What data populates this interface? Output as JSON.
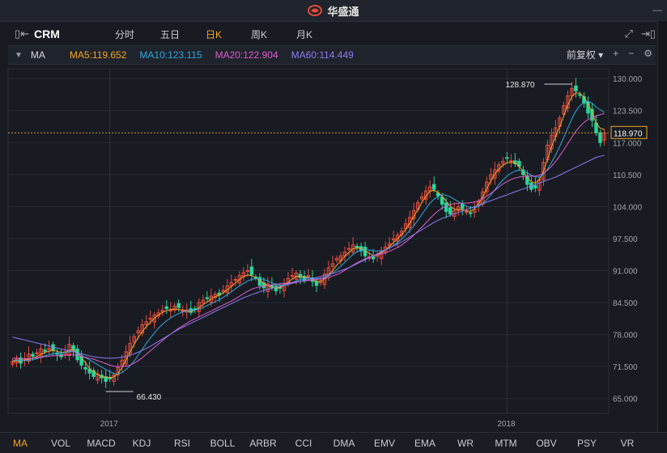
{
  "app": {
    "title": "华盛通"
  },
  "toolbar": {
    "symbol": "CRM",
    "tabs": [
      {
        "label": "分时",
        "active": false
      },
      {
        "label": "五日",
        "active": false
      },
      {
        "label": "日K",
        "active": true
      },
      {
        "label": "周K",
        "active": false
      },
      {
        "label": "月K",
        "active": false
      }
    ]
  },
  "ma_bar": {
    "name": "MA",
    "items": [
      {
        "label": "MA5:119.652",
        "color": "#f5a623"
      },
      {
        "label": "MA10:123.115",
        "color": "#2fa8e0"
      },
      {
        "label": "MA20:122.904",
        "color": "#e05bd0"
      },
      {
        "label": "MA60:114.449",
        "color": "#8b7cf6"
      }
    ],
    "adjust_label": "前复权"
  },
  "chart_data": {
    "type": "candlestick",
    "y_axis_ticks": [
      "130.000",
      "123.500",
      "117.000",
      "110.500",
      "104.000",
      "97.500",
      "91.000",
      "84.500",
      "78.000",
      "71.500",
      "65.000"
    ],
    "ylim": [
      62,
      132
    ],
    "x_axis_labels": [
      "2017",
      "2018"
    ],
    "high_label": "128.870",
    "low_label": "66.430",
    "current_price": "118.970",
    "close_series": [
      72.5,
      73.0,
      72.2,
      73.1,
      74.0,
      73.6,
      74.3,
      75.1,
      74.6,
      75.2,
      74.8,
      74.0,
      73.5,
      74.5,
      76.0,
      74.8,
      72.9,
      71.8,
      71.0,
      70.2,
      69.5,
      70.0,
      69.2,
      68.5,
      69.0,
      69.8,
      71.3,
      72.8,
      74.5,
      76.2,
      77.6,
      78.8,
      80.0,
      80.6,
      81.3,
      82.0,
      82.4,
      82.9,
      83.3,
      83.0,
      83.8,
      83.5,
      82.8,
      83.0,
      82.5,
      83.2,
      84.5,
      85.0,
      85.3,
      85.8,
      86.2,
      86.0,
      87.0,
      87.9,
      88.6,
      89.2,
      90.0,
      90.6,
      91.0,
      90.2,
      89.6,
      88.0,
      87.5,
      88.3,
      87.6,
      86.9,
      87.4,
      88.3,
      89.4,
      90.0,
      90.5,
      89.6,
      89.0,
      90.0,
      88.8,
      88.0,
      88.9,
      90.3,
      91.6,
      92.4,
      93.5,
      94.0,
      94.8,
      95.5,
      96.2,
      95.6,
      95.0,
      94.0,
      93.8,
      93.4,
      94.2,
      95.0,
      95.8,
      96.5,
      97.5,
      98.2,
      99.0,
      100.5,
      101.8,
      103.2,
      104.8,
      106.0,
      107.2,
      108.0,
      107.5,
      106.2,
      104.5,
      103.0,
      102.5,
      103.2,
      104.0,
      103.6,
      103.0,
      102.6,
      103.5,
      105.0,
      107.0,
      109.0,
      110.5,
      111.5,
      112.5,
      113.2,
      113.8,
      113.3,
      112.7,
      112.2,
      110.5,
      108.5,
      107.5,
      107.8,
      109.5,
      113.0,
      116.5,
      118.5,
      120.0,
      122.0,
      124.5,
      126.5,
      128.0,
      127.5,
      126.6,
      125.0,
      123.0,
      121.5,
      119.0,
      117.0,
      118.97
    ],
    "ma_series": [
      {
        "name": "MA5",
        "values": [
          72.5,
          72.7,
          72.6,
          72.8,
          73.0,
          73.2,
          73.5,
          74.0,
          74.4,
          74.6,
          74.8,
          74.6,
          74.4,
          74.4,
          74.8,
          74.9,
          74.3,
          73.3,
          72.3,
          71.1,
          70.5,
          69.9,
          69.5,
          69.3,
          69.3,
          69.4,
          70.1,
          71.3,
          72.8,
          74.5,
          76.0,
          77.4,
          78.6,
          79.6,
          80.5,
          81.3,
          82.0,
          82.5,
          82.9,
          83.1,
          83.2,
          83.1,
          83.0,
          82.8,
          82.7,
          82.9,
          83.5,
          84.1,
          84.6,
          85.2,
          85.7,
          86.0,
          86.5,
          87.1,
          87.8,
          88.5,
          89.2,
          89.8,
          90.1,
          90.0,
          89.6,
          89.0,
          88.4,
          88.0,
          87.6,
          87.4,
          87.6,
          88.0,
          88.6,
          89.3,
          89.8,
          89.8,
          89.6,
          89.6,
          89.3,
          88.8,
          88.8,
          89.3,
          90.1,
          91.0,
          92.1,
          93.0,
          93.9,
          94.7,
          95.4,
          95.6,
          95.5,
          95.0,
          94.5,
          94.0,
          94.2,
          94.6,
          95.2,
          95.9,
          96.7,
          97.5,
          98.3,
          99.4,
          100.6,
          102.0,
          103.4,
          104.8,
          106.1,
          107.1,
          107.3,
          106.9,
          106.1,
          105.1,
          104.1,
          103.5,
          103.4,
          103.4,
          103.2,
          103.0,
          103.6,
          104.6,
          106.0,
          107.6,
          109.2,
          110.6,
          111.6,
          112.4,
          112.9,
          113.0,
          112.9,
          112.2,
          111.1,
          109.9,
          109.0,
          108.8,
          109.5,
          111.2,
          113.6,
          116.2,
          118.3,
          120.2,
          122.4,
          124.6,
          126.3,
          127.1,
          127.0,
          126.2,
          124.9,
          123.2,
          121.0,
          119.9,
          119.652
        ]
      },
      {
        "name": "MA10",
        "values": [
          72.8,
          72.8,
          72.7,
          72.7,
          72.8,
          72.9,
          73.1,
          73.4,
          73.7,
          73.9,
          74.1,
          74.2,
          74.3,
          74.4,
          74.5,
          74.6,
          74.3,
          73.8,
          73.3,
          72.9,
          72.4,
          71.9,
          71.4,
          70.9,
          70.5,
          70.1,
          70.0,
          70.3,
          70.9,
          71.7,
          72.6,
          73.8,
          75.0,
          76.2,
          77.3,
          78.3,
          79.3,
          80.1,
          80.8,
          81.4,
          81.9,
          82.3,
          82.6,
          82.8,
          82.9,
          83.0,
          83.2,
          83.5,
          83.9,
          84.3,
          84.7,
          85.1,
          85.6,
          86.1,
          86.7,
          87.3,
          87.9,
          88.4,
          88.9,
          89.2,
          89.4,
          89.4,
          89.2,
          88.9,
          88.5,
          88.2,
          88.0,
          88.1,
          88.3,
          88.6,
          88.9,
          89.2,
          89.4,
          89.5,
          89.5,
          89.4,
          89.4,
          89.6,
          90.0,
          90.5,
          91.2,
          91.9,
          92.7,
          93.5,
          94.3,
          94.8,
          95.1,
          95.2,
          95.2,
          95.0,
          95.0,
          95.0,
          95.2,
          95.6,
          96.1,
          96.7,
          97.4,
          98.2,
          99.1,
          100.1,
          101.2,
          102.4,
          103.6,
          104.7,
          105.5,
          106.1,
          106.4,
          106.3,
          106.0,
          105.5,
          105.0,
          104.5,
          104.1,
          103.8,
          103.8,
          104.0,
          104.6,
          105.4,
          106.4,
          107.4,
          108.5,
          109.4,
          110.2,
          110.8,
          111.2,
          111.4,
          111.2,
          110.8,
          110.4,
          110.0,
          110.0,
          110.6,
          111.6,
          113.0,
          114.5,
          116.2,
          118.0,
          119.9,
          121.8,
          123.4,
          124.5,
          125.2,
          125.4,
          125.0,
          124.2,
          123.7,
          123.115
        ]
      },
      {
        "name": "MA20",
        "values": [
          73.2,
          73.2,
          73.1,
          73.1,
          73.1,
          73.2,
          73.3,
          73.4,
          73.5,
          73.6,
          73.7,
          73.7,
          73.8,
          73.8,
          73.9,
          73.9,
          73.8,
          73.6,
          73.4,
          73.2,
          73.0,
          72.7,
          72.4,
          72.1,
          71.8,
          71.6,
          71.5,
          71.5,
          71.6,
          71.8,
          72.2,
          72.7,
          73.3,
          74.0,
          74.7,
          75.4,
          76.1,
          76.8,
          77.5,
          78.1,
          78.7,
          79.3,
          79.8,
          80.3,
          80.8,
          81.2,
          81.6,
          82.0,
          82.4,
          82.8,
          83.2,
          83.6,
          84.0,
          84.4,
          84.8,
          85.3,
          85.8,
          86.3,
          86.8,
          87.2,
          87.5,
          87.7,
          87.9,
          88.0,
          88.1,
          88.2,
          88.3,
          88.4,
          88.5,
          88.6,
          88.7,
          88.8,
          88.9,
          89.0,
          89.1,
          89.2,
          89.3,
          89.4,
          89.6,
          89.9,
          90.2,
          90.6,
          91.1,
          91.6,
          92.1,
          92.6,
          93.0,
          93.4,
          93.7,
          94.0,
          94.2,
          94.4,
          94.6,
          94.9,
          95.3,
          95.7,
          96.2,
          96.8,
          97.5,
          98.2,
          99.0,
          99.8,
          100.7,
          101.6,
          102.4,
          103.1,
          103.7,
          104.1,
          104.4,
          104.6,
          104.7,
          104.7,
          104.7,
          104.8,
          104.9,
          105.2,
          105.6,
          106.1,
          106.7,
          107.3,
          108.0,
          108.6,
          109.1,
          109.5,
          109.8,
          110.0,
          110.1,
          110.2,
          110.2,
          110.2,
          110.4,
          110.8,
          111.4,
          112.2,
          113.2,
          114.3,
          115.5,
          116.8,
          118.1,
          119.3,
          120.3,
          121.1,
          121.7,
          122.1,
          122.4,
          122.7,
          122.904
        ]
      },
      {
        "name": "MA60",
        "values": [
          77.5,
          77.3,
          77.1,
          76.9,
          76.7,
          76.5,
          76.3,
          76.1,
          75.9,
          75.7,
          75.5,
          75.3,
          75.1,
          74.9,
          74.7,
          74.5,
          74.3,
          74.1,
          73.9,
          73.7,
          73.5,
          73.4,
          73.3,
          73.2,
          73.2,
          73.2,
          73.3,
          73.4,
          73.6,
          73.8,
          74.1,
          74.4,
          74.8,
          75.2,
          75.6,
          76.1,
          76.6,
          77.1,
          77.6,
          78.1,
          78.6,
          79.1,
          79.5,
          79.9,
          80.3,
          80.7,
          81.1,
          81.5,
          81.9,
          82.3,
          82.7,
          83.1,
          83.5,
          83.9,
          84.3,
          84.7,
          85.1,
          85.5,
          85.8,
          86.1,
          86.4,
          86.7,
          87.0,
          87.2,
          87.4,
          87.6,
          87.8,
          88.0,
          88.2,
          88.4,
          88.6,
          88.8,
          89.0,
          89.2,
          89.4,
          89.6,
          89.8,
          90.0,
          90.2,
          90.4,
          90.7,
          91.0,
          91.3,
          91.6,
          92.0,
          92.4,
          92.8,
          93.2,
          93.6,
          94.0,
          94.4,
          94.8,
          95.2,
          95.6,
          96.0,
          96.4,
          96.8,
          97.3,
          97.8,
          98.3,
          98.8,
          99.3,
          99.8,
          100.3,
          100.8,
          101.2,
          101.6,
          101.9,
          102.2,
          102.5,
          102.8,
          103.1,
          103.4,
          103.7,
          104.0,
          104.3,
          104.6,
          104.9,
          105.2,
          105.5,
          105.8,
          106.1,
          106.4,
          106.7,
          107.0,
          107.3,
          107.6,
          107.9,
          108.2,
          108.5,
          108.8,
          109.1,
          109.4,
          109.7,
          110.0,
          110.4,
          110.8,
          111.2,
          111.6,
          112.0,
          112.4,
          112.8,
          113.2,
          113.6,
          114.0,
          114.2,
          114.449
        ]
      }
    ]
  },
  "bottom_tabs": [
    {
      "label": "MA",
      "active": true
    },
    {
      "label": "VOL"
    },
    {
      "label": "MACD"
    },
    {
      "label": "KDJ"
    },
    {
      "label": "RSI"
    },
    {
      "label": "BOLL"
    },
    {
      "label": "ARBR"
    },
    {
      "label": "CCI"
    },
    {
      "label": "DMA"
    },
    {
      "label": "EMV"
    },
    {
      "label": "EMA"
    },
    {
      "label": "WR"
    },
    {
      "label": "MTM"
    },
    {
      "label": "OBV"
    },
    {
      "label": "PSY"
    },
    {
      "label": "VR"
    }
  ],
  "colors": {
    "up": "#e94b3c",
    "down": "#2bd49a",
    "grid": "#262a33",
    "text": "#c9ccd3"
  }
}
